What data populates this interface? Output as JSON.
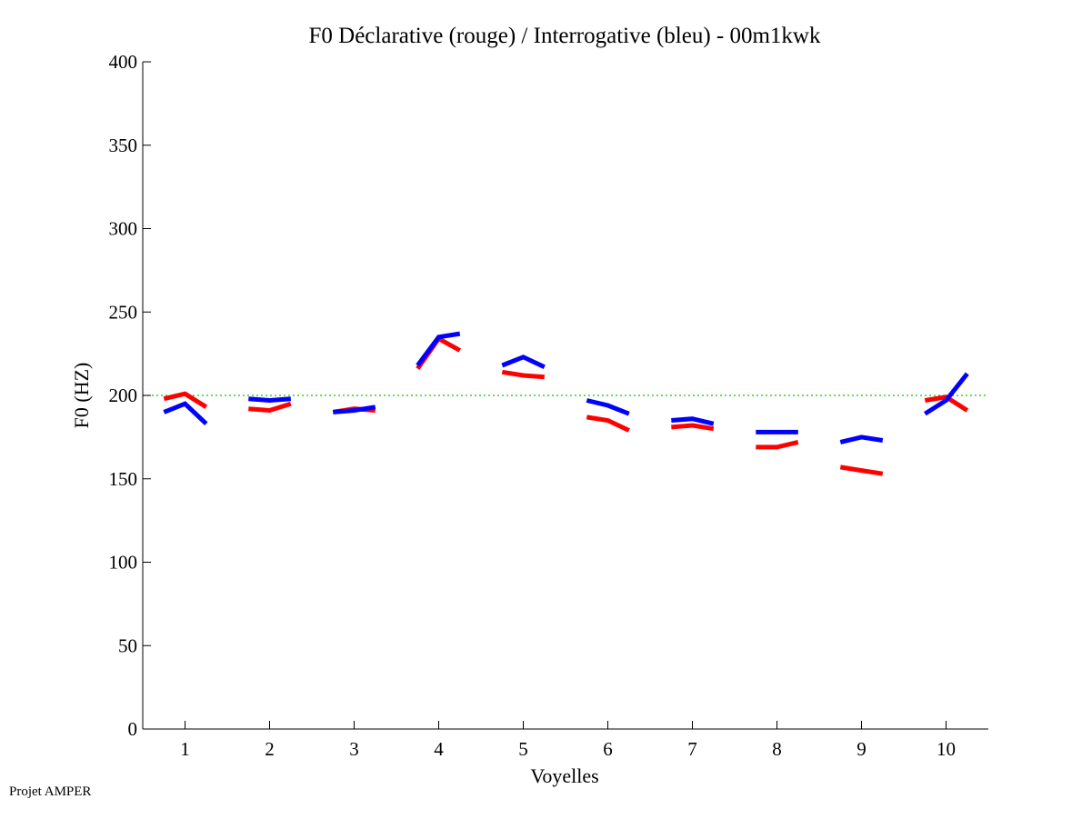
{
  "chart_data": {
    "type": "line",
    "title": "F0 Déclarative (rouge) / Interrogative (bleu) - 00m1kwk",
    "xlabel": "Voyelles",
    "ylabel": "F0 (HZ)",
    "xlim": [
      0.5,
      10.5
    ],
    "ylim": [
      0,
      400
    ],
    "x_ticks": [
      1,
      2,
      3,
      4,
      5,
      6,
      7,
      8,
      9,
      10
    ],
    "y_ticks": [
      0,
      50,
      100,
      150,
      200,
      250,
      300,
      350,
      400
    ],
    "reference_line": {
      "y": 200,
      "color": "#00cc00",
      "style": "dotted"
    },
    "series": [
      {
        "name": "Déclarative (rouge)",
        "color": "#ff0000",
        "segments": [
          {
            "x": [
              0.75,
              1.0,
              1.25
            ],
            "y": [
              198,
              201,
              193
            ]
          },
          {
            "x": [
              1.75,
              2.0,
              2.25
            ],
            "y": [
              192,
              191,
              195
            ]
          },
          {
            "x": [
              2.75,
              3.0,
              3.25
            ],
            "y": [
              190,
              192,
              191
            ]
          },
          {
            "x": [
              3.75,
              4.0,
              4.25
            ],
            "y": [
              216,
              234,
              227
            ]
          },
          {
            "x": [
              4.75,
              5.0,
              5.25
            ],
            "y": [
              214,
              212,
              211
            ]
          },
          {
            "x": [
              5.75,
              6.0,
              6.25
            ],
            "y": [
              187,
              185,
              179
            ]
          },
          {
            "x": [
              6.75,
              7.0,
              7.25
            ],
            "y": [
              181,
              182,
              180
            ]
          },
          {
            "x": [
              7.75,
              8.0,
              8.25
            ],
            "y": [
              169,
              169,
              172
            ]
          },
          {
            "x": [
              8.75,
              9.0,
              9.25
            ],
            "y": [
              157,
              155,
              153
            ]
          },
          {
            "x": [
              9.75,
              10.0,
              10.25
            ],
            "y": [
              197,
              199,
              191
            ]
          }
        ]
      },
      {
        "name": "Interrogative (bleu)",
        "color": "#0000ff",
        "segments": [
          {
            "x": [
              0.75,
              1.0,
              1.25
            ],
            "y": [
              190,
              195,
              183
            ]
          },
          {
            "x": [
              1.75,
              2.0,
              2.25
            ],
            "y": [
              198,
              197,
              198
            ]
          },
          {
            "x": [
              2.75,
              3.0,
              3.25
            ],
            "y": [
              190,
              191,
              193
            ]
          },
          {
            "x": [
              3.75,
              4.0,
              4.25
            ],
            "y": [
              218,
              235,
              237
            ]
          },
          {
            "x": [
              4.75,
              5.0,
              5.25
            ],
            "y": [
              218,
              223,
              217
            ]
          },
          {
            "x": [
              5.75,
              6.0,
              6.25
            ],
            "y": [
              197,
              194,
              189
            ]
          },
          {
            "x": [
              6.75,
              7.0,
              7.25
            ],
            "y": [
              185,
              186,
              183
            ]
          },
          {
            "x": [
              7.75,
              8.0,
              8.25
            ],
            "y": [
              178,
              178,
              178
            ]
          },
          {
            "x": [
              8.75,
              9.0,
              9.25
            ],
            "y": [
              172,
              175,
              173
            ]
          },
          {
            "x": [
              9.75,
              10.0,
              10.25
            ],
            "y": [
              189,
              197,
              213
            ]
          }
        ]
      }
    ]
  },
  "footer": {
    "text": "Projet AMPER"
  }
}
